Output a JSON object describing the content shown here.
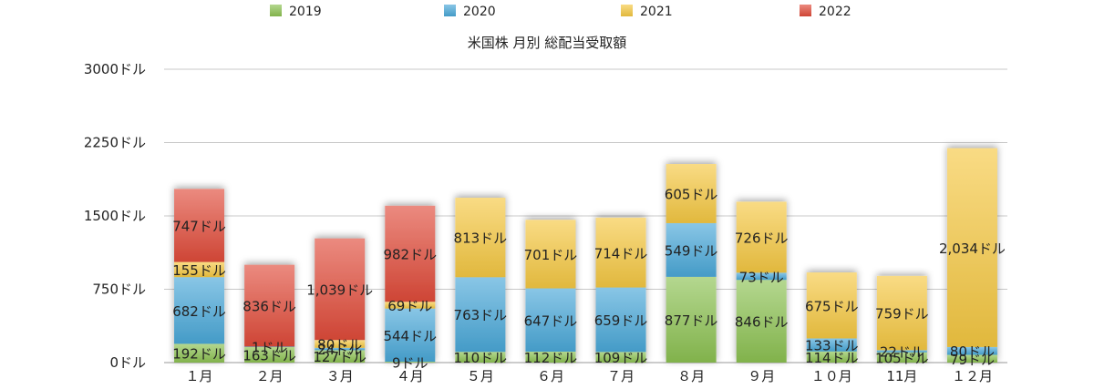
{
  "chart_data": {
    "type": "bar",
    "stacked": true,
    "title": "米国株 月別 総配当受取額",
    "categories": [
      "１月",
      "２月",
      "３月",
      "４月",
      "５月",
      "６月",
      "７月",
      "８月",
      "９月",
      "１０月",
      "11月",
      "１２月"
    ],
    "series": [
      {
        "name": "2019",
        "color": "#8cc152",
        "values": [
          192,
          163,
          127,
          9,
          110,
          112,
          109,
          877,
          846,
          114,
          105,
          79
        ],
        "labels": [
          "192ドル",
          "163ドル",
          "127ドル",
          "9ドル",
          "110ドル",
          "112ドル",
          "109ドル",
          "877ドル",
          "846ドル",
          "114ドル",
          "105ドル",
          "79ドル"
        ]
      },
      {
        "name": "2020",
        "color": "#4aa8d8",
        "values": [
          682,
          1,
          24,
          544,
          763,
          647,
          659,
          549,
          73,
          133,
          22,
          80
        ],
        "labels": [
          "682ドル",
          "1ドル",
          "24ドル",
          "544ドル",
          "763ドル",
          "647ドル",
          "659ドル",
          "549ドル",
          "73ドル",
          "133ドル",
          "22ドル",
          "80ドル"
        ]
      },
      {
        "name": "2021",
        "color": "#f5c842",
        "values": [
          155,
          0,
          80,
          69,
          813,
          701,
          714,
          605,
          726,
          675,
          759,
          2034
        ],
        "labels": [
          "155ドル",
          "",
          "80ドル",
          "69ドル",
          "813ドル",
          "701ドル",
          "714ドル",
          "605ドル",
          "726ドル",
          "675ドル",
          "759ドル",
          "2,034ドル"
        ]
      },
      {
        "name": "2022",
        "color": "#e04b3a",
        "values": [
          747,
          836,
          1039,
          982,
          0,
          0,
          0,
          0,
          0,
          0,
          0,
          0
        ],
        "labels": [
          "747ドル",
          "836ドル",
          "1,039ドル",
          "982ドル",
          "",
          "",
          "",
          "",
          "",
          "",
          "",
          ""
        ]
      }
    ],
    "ylim": [
      0,
      3000
    ],
    "yticks": [
      0,
      750,
      1500,
      2250,
      3000
    ],
    "ytick_labels": [
      "0ドル",
      "750ドル",
      "1500ドル",
      "2250ドル",
      "3000ドル"
    ],
    "grid": true,
    "legend_position": "top"
  }
}
